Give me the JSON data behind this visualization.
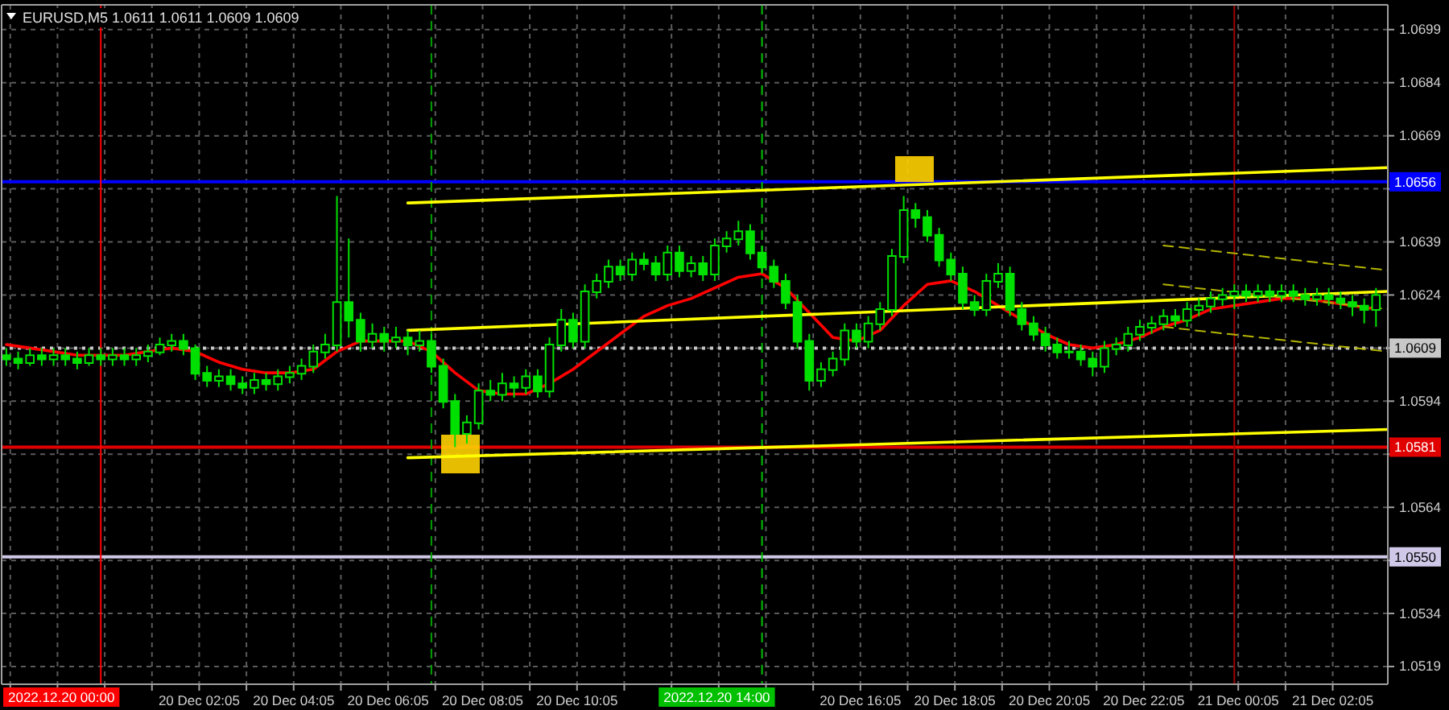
{
  "chart_data": {
    "type": "candlestick",
    "title": "EURUSD,M5 1.0611 1.0611 1.0609 1.0609",
    "color": "#00e000",
    "x": [
      "2022-12-19T22:00",
      "2022-12-19T22:15",
      "2022-12-19T22:30",
      "2022-12-19T22:45",
      "2022-12-19T23:00",
      "2022-12-19T23:15",
      "2022-12-19T23:30",
      "2022-12-19T23:45",
      "2022-12-20T00:00",
      "2022-12-20T00:15",
      "2022-12-20T00:30",
      "2022-12-20T00:45",
      "2022-12-20T01:00",
      "2022-12-20T01:15",
      "2022-12-20T01:30",
      "2022-12-20T01:45",
      "2022-12-20T02:00",
      "2022-12-20T02:15",
      "2022-12-20T02:30",
      "2022-12-20T02:45",
      "2022-12-20T03:00",
      "2022-12-20T03:15",
      "2022-12-20T03:30",
      "2022-12-20T03:45",
      "2022-12-20T04:00",
      "2022-12-20T04:15",
      "2022-12-20T04:30",
      "2022-12-20T04:45",
      "2022-12-20T05:00",
      "2022-12-20T05:15",
      "2022-12-20T05:30",
      "2022-12-20T05:45",
      "2022-12-20T06:00",
      "2022-12-20T06:15",
      "2022-12-20T06:30",
      "2022-12-20T06:45",
      "2022-12-20T07:00",
      "2022-12-20T07:15",
      "2022-12-20T07:30",
      "2022-12-20T07:45",
      "2022-12-20T08:00",
      "2022-12-20T08:15",
      "2022-12-20T08:30",
      "2022-12-20T08:45",
      "2022-12-20T09:00",
      "2022-12-20T09:15",
      "2022-12-20T09:30",
      "2022-12-20T09:45",
      "2022-12-20T10:00",
      "2022-12-20T10:15",
      "2022-12-20T10:30",
      "2022-12-20T10:45",
      "2022-12-20T11:00",
      "2022-12-20T11:15",
      "2022-12-20T11:30",
      "2022-12-20T11:45",
      "2022-12-20T12:00",
      "2022-12-20T12:15",
      "2022-12-20T12:30",
      "2022-12-20T12:45",
      "2022-12-20T13:00",
      "2022-12-20T13:15",
      "2022-12-20T13:30",
      "2022-12-20T13:45",
      "2022-12-20T14:00",
      "2022-12-20T14:15",
      "2022-12-20T14:30",
      "2022-12-20T14:45",
      "2022-12-20T15:00",
      "2022-12-20T15:15",
      "2022-12-20T15:30",
      "2022-12-20T15:45",
      "2022-12-20T16:00",
      "2022-12-20T16:15",
      "2022-12-20T16:30",
      "2022-12-20T16:45",
      "2022-12-20T17:00",
      "2022-12-20T17:15",
      "2022-12-20T17:30",
      "2022-12-20T17:45",
      "2022-12-20T18:00",
      "2022-12-20T18:15",
      "2022-12-20T18:30",
      "2022-12-20T18:45",
      "2022-12-20T19:00",
      "2022-12-20T19:15",
      "2022-12-20T19:30",
      "2022-12-20T19:45",
      "2022-12-20T20:00",
      "2022-12-20T20:15",
      "2022-12-20T20:30",
      "2022-12-20T20:45",
      "2022-12-20T21:00",
      "2022-12-20T21:15",
      "2022-12-20T21:30",
      "2022-12-20T21:45",
      "2022-12-20T22:00",
      "2022-12-20T22:15",
      "2022-12-20T22:30",
      "2022-12-20T22:45",
      "2022-12-20T23:00",
      "2022-12-20T23:15",
      "2022-12-20T23:30",
      "2022-12-20T23:45",
      "2022-12-21T00:00",
      "2022-12-21T00:15",
      "2022-12-21T00:30",
      "2022-12-21T00:45",
      "2022-12-21T01:00",
      "2022-12-21T01:15",
      "2022-12-21T01:30",
      "2022-12-21T01:45",
      "2022-12-21T02:00",
      "2022-12-21T02:15",
      "2022-12-21T02:30",
      "2022-12-21T02:45",
      "2022-12-21T03:00"
    ],
    "ohlc": [
      [
        1.0607,
        1.0609,
        1.0604,
        1.0606
      ],
      [
        1.0606,
        1.0608,
        1.0603,
        1.0605
      ],
      [
        1.0605,
        1.0609,
        1.0604,
        1.0607
      ],
      [
        1.0607,
        1.0609,
        1.0604,
        1.0606
      ],
      [
        1.0606,
        1.0609,
        1.0604,
        1.0607
      ],
      [
        1.0607,
        1.0609,
        1.0604,
        1.0606
      ],
      [
        1.0606,
        1.0608,
        1.0603,
        1.0605
      ],
      [
        1.0605,
        1.0609,
        1.0604,
        1.0607
      ],
      [
        1.0607,
        1.0609,
        1.0604,
        1.0606
      ],
      [
        1.0606,
        1.0609,
        1.0604,
        1.0607
      ],
      [
        1.0607,
        1.0609,
        1.0604,
        1.0606
      ],
      [
        1.0606,
        1.0609,
        1.0604,
        1.0607
      ],
      [
        1.0607,
        1.061,
        1.0605,
        1.0608
      ],
      [
        1.0608,
        1.0612,
        1.0607,
        1.061
      ],
      [
        1.061,
        1.0613,
        1.0608,
        1.0611
      ],
      [
        1.0611,
        1.0613,
        1.0607,
        1.0609
      ],
      [
        1.0609,
        1.061,
        1.06,
        1.0602
      ],
      [
        1.0602,
        1.0604,
        1.0598,
        1.06
      ],
      [
        1.06,
        1.0603,
        1.0598,
        1.0601
      ],
      [
        1.0601,
        1.0603,
        1.0597,
        1.0599
      ],
      [
        1.0599,
        1.0601,
        1.0596,
        1.0598
      ],
      [
        1.0598,
        1.0602,
        1.0596,
        1.06
      ],
      [
        1.06,
        1.0602,
        1.0597,
        1.0599
      ],
      [
        1.0599,
        1.0603,
        1.0597,
        1.0601
      ],
      [
        1.0601,
        1.0604,
        1.0599,
        1.0602
      ],
      [
        1.0602,
        1.0606,
        1.06,
        1.0604
      ],
      [
        1.0604,
        1.061,
        1.0602,
        1.0608
      ],
      [
        1.0608,
        1.0613,
        1.0606,
        1.061
      ],
      [
        1.061,
        1.0652,
        1.0608,
        1.0622
      ],
      [
        1.0622,
        1.064,
        1.0612,
        1.0617
      ],
      [
        1.0617,
        1.0619,
        1.0608,
        1.0611
      ],
      [
        1.0611,
        1.0616,
        1.0609,
        1.0613
      ],
      [
        1.0613,
        1.0615,
        1.0608,
        1.0611
      ],
      [
        1.0611,
        1.0615,
        1.0609,
        1.0612
      ],
      [
        1.0612,
        1.0614,
        1.0607,
        1.061
      ],
      [
        1.061,
        1.0614,
        1.0608,
        1.0611
      ],
      [
        1.0611,
        1.0613,
        1.0602,
        1.0604
      ],
      [
        1.0604,
        1.0606,
        1.0592,
        1.0594
      ],
      [
        1.0594,
        1.0596,
        1.0581,
        1.0585
      ],
      [
        1.0585,
        1.059,
        1.0582,
        1.0588
      ],
      [
        1.0588,
        1.0599,
        1.0586,
        1.0597
      ],
      [
        1.0597,
        1.06,
        1.0594,
        1.0596
      ],
      [
        1.0596,
        1.0602,
        1.0594,
        1.0599
      ],
      [
        1.0599,
        1.0601,
        1.0595,
        1.0598
      ],
      [
        1.0598,
        1.0603,
        1.0596,
        1.0601
      ],
      [
        1.0601,
        1.0603,
        1.0595,
        1.0597
      ],
      [
        1.0597,
        1.0612,
        1.0595,
        1.061
      ],
      [
        1.061,
        1.062,
        1.0608,
        1.0617
      ],
      [
        1.0617,
        1.0619,
        1.0609,
        1.0611
      ],
      [
        1.0611,
        1.0627,
        1.0609,
        1.0625
      ],
      [
        1.0625,
        1.063,
        1.0623,
        1.0628
      ],
      [
        1.0628,
        1.0634,
        1.0626,
        1.0632
      ],
      [
        1.0632,
        1.0634,
        1.0628,
        1.063
      ],
      [
        1.063,
        1.0636,
        1.0628,
        1.0634
      ],
      [
        1.0634,
        1.0636,
        1.0631,
        1.0633
      ],
      [
        1.0633,
        1.0635,
        1.0628,
        1.063
      ],
      [
        1.063,
        1.0638,
        1.0628,
        1.0636
      ],
      [
        1.0636,
        1.0638,
        1.0629,
        1.0631
      ],
      [
        1.0631,
        1.0635,
        1.0629,
        1.0633
      ],
      [
        1.0633,
        1.0635,
        1.0628,
        1.063
      ],
      [
        1.063,
        1.064,
        1.0628,
        1.0638
      ],
      [
        1.0638,
        1.0642,
        1.0636,
        1.064
      ],
      [
        1.064,
        1.0645,
        1.0638,
        1.0642
      ],
      [
        1.0642,
        1.0644,
        1.0634,
        1.0636
      ],
      [
        1.0636,
        1.0638,
        1.063,
        1.0632
      ],
      [
        1.0632,
        1.0634,
        1.0626,
        1.0628
      ],
      [
        1.0628,
        1.063,
        1.062,
        1.0622
      ],
      [
        1.0622,
        1.0624,
        1.0609,
        1.0611
      ],
      [
        1.0611,
        1.0613,
        1.0597,
        1.06
      ],
      [
        1.06,
        1.0605,
        1.0598,
        1.0603
      ],
      [
        1.0603,
        1.0608,
        1.0601,
        1.0606
      ],
      [
        1.0606,
        1.0616,
        1.0604,
        1.0614
      ],
      [
        1.0614,
        1.0616,
        1.0609,
        1.0611
      ],
      [
        1.0611,
        1.0618,
        1.0609,
        1.0616
      ],
      [
        1.0616,
        1.0622,
        1.0614,
        1.062
      ],
      [
        1.062,
        1.0637,
        1.0618,
        1.0635
      ],
      [
        1.0635,
        1.0652,
        1.0633,
        1.0648
      ],
      [
        1.0648,
        1.065,
        1.0643,
        1.0646
      ],
      [
        1.0646,
        1.0648,
        1.0639,
        1.0641
      ],
      [
        1.0641,
        1.0643,
        1.0632,
        1.0634
      ],
      [
        1.0634,
        1.0636,
        1.0628,
        1.063
      ],
      [
        1.063,
        1.0632,
        1.062,
        1.0622
      ],
      [
        1.0622,
        1.0624,
        1.0618,
        1.062
      ],
      [
        1.062,
        1.063,
        1.0618,
        1.0628
      ],
      [
        1.0628,
        1.0633,
        1.0626,
        1.063
      ],
      [
        1.063,
        1.0632,
        1.0618,
        1.062
      ],
      [
        1.062,
        1.0622,
        1.0614,
        1.0616
      ],
      [
        1.0616,
        1.0618,
        1.0611,
        1.0613
      ],
      [
        1.0613,
        1.0615,
        1.0608,
        1.061
      ],
      [
        1.061,
        1.0612,
        1.0606,
        1.0608
      ],
      [
        1.0608,
        1.0611,
        1.0606,
        1.0608
      ],
      [
        1.0608,
        1.061,
        1.0604,
        1.0606
      ],
      [
        1.0606,
        1.0608,
        1.0601,
        1.0604
      ],
      [
        1.0604,
        1.0611,
        1.0602,
        1.0609
      ],
      [
        1.0609,
        1.0612,
        1.0607,
        1.061
      ],
      [
        1.061,
        1.0615,
        1.0608,
        1.0613
      ],
      [
        1.0613,
        1.0617,
        1.0611,
        1.0615
      ],
      [
        1.0615,
        1.0618,
        1.0613,
        1.0616
      ],
      [
        1.0616,
        1.062,
        1.0614,
        1.0618
      ],
      [
        1.0618,
        1.062,
        1.0615,
        1.0617
      ],
      [
        1.0617,
        1.0622,
        1.0615,
        1.062
      ],
      [
        1.062,
        1.0623,
        1.0618,
        1.0621
      ],
      [
        1.0621,
        1.0625,
        1.0619,
        1.0623
      ],
      [
        1.0623,
        1.0626,
        1.0621,
        1.0624
      ],
      [
        1.0624,
        1.0627,
        1.062,
        1.0625
      ],
      [
        1.0625,
        1.0627,
        1.0622,
        1.0624
      ],
      [
        1.0624,
        1.0627,
        1.0622,
        1.0625
      ],
      [
        1.0625,
        1.0627,
        1.0622,
        1.0624
      ],
      [
        1.0624,
        1.0627,
        1.0622,
        1.0625
      ],
      [
        1.0625,
        1.0627,
        1.0622,
        1.0624
      ],
      [
        1.0624,
        1.0626,
        1.0621,
        1.0623
      ],
      [
        1.0623,
        1.0626,
        1.0621,
        1.0624
      ],
      [
        1.0624,
        1.0626,
        1.0621,
        1.0623
      ],
      [
        1.0623,
        1.0625,
        1.062,
        1.0622
      ],
      [
        1.0622,
        1.0624,
        1.0618,
        1.0621
      ],
      [
        1.0621,
        1.0623,
        1.0616,
        1.062
      ],
      [
        1.062,
        1.0626,
        1.0615,
        1.0624
      ]
    ],
    "series": [
      {
        "type": "line",
        "color": "#ff0000",
        "x": [
          "2022-12-19T22:00",
          "2022-12-19T22:30",
          "2022-12-19T23:00",
          "2022-12-19T23:30",
          "2022-12-20T00:00",
          "2022-12-20T00:30",
          "2022-12-20T01:00",
          "2022-12-20T01:30",
          "2022-12-20T02:00",
          "2022-12-20T02:30",
          "2022-12-20T03:00",
          "2022-12-20T03:30",
          "2022-12-20T04:00",
          "2022-12-20T04:30",
          "2022-12-20T05:00",
          "2022-12-20T05:30",
          "2022-12-20T06:00",
          "2022-12-20T06:30",
          "2022-12-20T07:00",
          "2022-12-20T07:30",
          "2022-12-20T08:00",
          "2022-12-20T08:30",
          "2022-12-20T09:00",
          "2022-12-20T09:30",
          "2022-12-20T10:00",
          "2022-12-20T10:30",
          "2022-12-20T11:00",
          "2022-12-20T11:30",
          "2022-12-20T12:00",
          "2022-12-20T12:30",
          "2022-12-20T13:00",
          "2022-12-20T13:30",
          "2022-12-20T14:00",
          "2022-12-20T14:30",
          "2022-12-20T15:00",
          "2022-12-20T15:30",
          "2022-12-20T16:00",
          "2022-12-20T16:30",
          "2022-12-20T17:00",
          "2022-12-20T17:30",
          "2022-12-20T18:00",
          "2022-12-20T18:30",
          "2022-12-20T19:00",
          "2022-12-20T19:30",
          "2022-12-20T20:00",
          "2022-12-20T20:30",
          "2022-12-20T21:00",
          "2022-12-20T21:30",
          "2022-12-20T22:00",
          "2022-12-20T22:30",
          "2022-12-20T23:00",
          "2022-12-20T23:30",
          "2022-12-21T00:00",
          "2022-12-21T00:30",
          "2022-12-21T01:00",
          "2022-12-21T01:30",
          "2022-12-21T02:00",
          "2022-12-21T02:30",
          "2022-12-21T03:00"
        ],
        "values": [
          1.061,
          1.0609,
          1.0608,
          1.0607,
          1.0607,
          1.0607,
          1.0608,
          1.0609,
          1.0608,
          1.0605,
          1.0603,
          1.0602,
          1.0602,
          1.0603,
          1.0608,
          1.0611,
          1.0611,
          1.0611,
          1.0608,
          1.0602,
          1.0597,
          1.0596,
          1.0596,
          1.0599,
          1.0603,
          1.0608,
          1.0613,
          1.0618,
          1.0621,
          1.0623,
          1.0626,
          1.0629,
          1.063,
          1.0626,
          1.0619,
          1.0612,
          1.0611,
          1.0614,
          1.0621,
          1.0627,
          1.0628,
          1.0625,
          1.0621,
          1.0617,
          1.0613,
          1.061,
          1.0609,
          1.061,
          1.0612,
          1.0615,
          1.0617,
          1.062,
          1.0621,
          1.0622,
          1.0623,
          1.0623,
          1.0622,
          1.0621,
          1.062
        ]
      },
      {
        "type": "line",
        "color": "#ffff00",
        "x": [
          "2022-12-20T06:30",
          "2022-12-21T03:15"
        ],
        "values": [
          1.065,
          1.066
        ]
      },
      {
        "type": "line",
        "color": "#ffff00",
        "x": [
          "2022-12-20T06:30",
          "2022-12-21T03:15"
        ],
        "values": [
          1.0614,
          1.0625
        ]
      },
      {
        "type": "line",
        "color": "#ffff00",
        "x": [
          "2022-12-20T06:30",
          "2022-12-21T03:15"
        ],
        "values": [
          1.0578,
          1.0586
        ]
      },
      {
        "type": "line",
        "color": "#b4b400",
        "line_style": "dashed",
        "x": [
          "2022-12-20T22:30",
          "2022-12-21T03:15"
        ],
        "values": [
          1.0638,
          1.0631
        ]
      },
      {
        "type": "line",
        "color": "#b4b400",
        "line_style": "dashed",
        "x": [
          "2022-12-20T22:30",
          "2022-12-21T03:15"
        ],
        "values": [
          1.0627,
          1.062
        ]
      },
      {
        "type": "line",
        "color": "#b4b400",
        "line_style": "dashed",
        "x": [
          "2022-12-20T22:30",
          "2022-12-21T03:15"
        ],
        "values": [
          1.0615,
          1.0608
        ]
      }
    ],
    "xlim": [
      "2022-12-19T21:54",
      "2022-12-21T03:15"
    ],
    "xticks": [
      {
        "value": "2022-12-19T22:05",
        "label": null
      },
      {
        "value": "2022-12-19T23:05",
        "label": null
      },
      {
        "value": "2022-12-20T00:05",
        "label": null
      },
      {
        "value": "2022-12-20T01:05",
        "label": null
      },
      {
        "value": "2022-12-20T02:05",
        "label": "20 Dec 02:05"
      },
      {
        "value": "2022-12-20T03:05",
        "label": null
      },
      {
        "value": "2022-12-20T04:05",
        "label": "20 Dec 04:05"
      },
      {
        "value": "2022-12-20T05:05",
        "label": null
      },
      {
        "value": "2022-12-20T06:05",
        "label": "20 Dec 06:05"
      },
      {
        "value": "2022-12-20T07:05",
        "label": null
      },
      {
        "value": "2022-12-20T08:05",
        "label": "20 Dec 08:05"
      },
      {
        "value": "2022-12-20T09:05",
        "label": null
      },
      {
        "value": "2022-12-20T10:05",
        "label": "20 Dec 10:05"
      },
      {
        "value": "2022-12-20T11:05",
        "label": null
      },
      {
        "value": "2022-12-20T12:05",
        "label": null
      },
      {
        "value": "2022-12-20T13:05",
        "label": null
      },
      {
        "value": "2022-12-20T14:05",
        "label": null
      },
      {
        "value": "2022-12-20T15:05",
        "label": null
      },
      {
        "value": "2022-12-20T16:05",
        "label": "20 Dec 16:05"
      },
      {
        "value": "2022-12-20T17:05",
        "label": null
      },
      {
        "value": "2022-12-20T18:05",
        "label": "20 Dec 18:05"
      },
      {
        "value": "2022-12-20T19:05",
        "label": null
      },
      {
        "value": "2022-12-20T20:05",
        "label": "20 Dec 20:05"
      },
      {
        "value": "2022-12-20T21:05",
        "label": null
      },
      {
        "value": "2022-12-20T22:05",
        "label": "20 Dec 22:05"
      },
      {
        "value": "2022-12-20T23:05",
        "label": null
      },
      {
        "value": "2022-12-21T00:05",
        "label": "21 Dec 00:05"
      },
      {
        "value": "2022-12-21T01:05",
        "label": null
      },
      {
        "value": "2022-12-21T02:05",
        "label": "21 Dec 02:05"
      }
    ],
    "ylim": [
      1.0514,
      1.0706
    ],
    "yticks": [
      1.0519,
      1.0534,
      {
        "value": 1.0549,
        "label": null
      },
      1.0564,
      {
        "value": 1.0579,
        "label": null
      },
      1.0594,
      {
        "value": 1.0609,
        "label": null
      },
      1.0624,
      1.0639,
      {
        "value": 1.0654,
        "label": null
      },
      1.0669,
      1.0684,
      1.0699
    ],
    "grid": true,
    "ref_lines": [
      {
        "axis": "y",
        "value": 1.0656,
        "label": "1.0656",
        "color": "#0000ff"
      },
      {
        "axis": "y",
        "value": 1.0609,
        "label": "1.0609",
        "color": "#c8c8c8",
        "line_style": "dotted"
      },
      {
        "axis": "y",
        "value": 1.0581,
        "label": "1.0581",
        "color": "#e00000"
      },
      {
        "axis": "y",
        "value": 1.055,
        "label": "1.0550",
        "color": "#d0c8e8"
      },
      {
        "axis": "x",
        "value": "2022-12-20T00:00",
        "label": "2022.12.20 00:00",
        "color": "#ff0000"
      },
      {
        "axis": "x",
        "value": "2022-12-20T07:00",
        "color": "#00a000",
        "line_style": "dashed"
      },
      {
        "axis": "x",
        "value": "2022-12-20T14:00",
        "label": "2022.12.20 14:00",
        "color": "#00c000",
        "line_style": "dashed"
      },
      {
        "axis": "x",
        "value": "2022-12-21T00:00",
        "color": "#a00000"
      }
    ]
  }
}
